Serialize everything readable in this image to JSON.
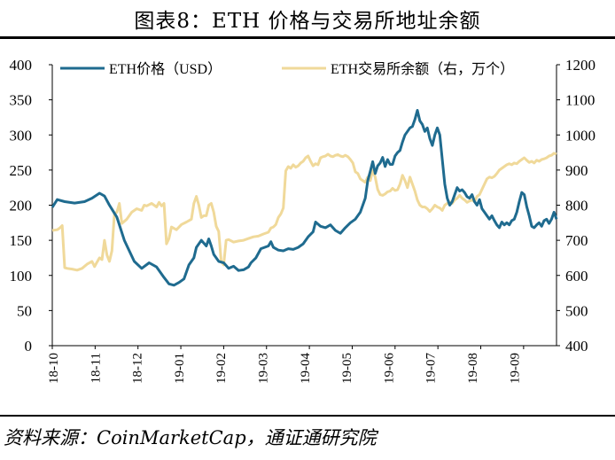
{
  "title": "图表8：ETH 价格与交易所地址余额",
  "source": "资料来源：CoinMarketCap，通证通研究院",
  "chart_data": {
    "type": "line",
    "x_ticks": [
      "18-10",
      "18-11",
      "18-12",
      "19-01",
      "19-02",
      "19-03",
      "19-04",
      "19-05",
      "19-06",
      "19-07",
      "19-08",
      "19-09"
    ],
    "y_left": {
      "lim": [
        0,
        400
      ],
      "ticks": [
        "0",
        "50",
        "100",
        "150",
        "200",
        "250",
        "300",
        "350",
        "400"
      ]
    },
    "y_right": {
      "lim": [
        400,
        1200
      ],
      "ticks": [
        "400",
        "500",
        "600",
        "700",
        "800",
        "900",
        "1000",
        "1100",
        "1200"
      ]
    },
    "legend_position": "top",
    "series": [
      {
        "name": "ETH价格（USD）",
        "axis": "left",
        "color": "#1f6b8f",
        "points": [
          [
            0,
            197
          ],
          [
            2,
            208
          ],
          [
            5,
            205
          ],
          [
            9,
            203
          ],
          [
            13,
            205
          ],
          [
            16,
            210
          ],
          [
            19,
            217
          ],
          [
            21,
            213
          ],
          [
            23,
            200
          ],
          [
            26,
            183
          ],
          [
            29,
            150
          ],
          [
            31,
            135
          ],
          [
            33,
            120
          ],
          [
            36,
            110
          ],
          [
            39,
            118
          ],
          [
            42,
            112
          ],
          [
            45,
            97
          ],
          [
            47,
            88
          ],
          [
            49,
            86
          ],
          [
            51,
            90
          ],
          [
            53,
            95
          ],
          [
            55,
            115
          ],
          [
            57,
            125
          ],
          [
            58,
            140
          ],
          [
            60,
            150
          ],
          [
            62,
            142
          ],
          [
            63,
            152
          ],
          [
            64,
            142
          ],
          [
            65,
            130
          ],
          [
            67,
            120
          ],
          [
            69,
            118
          ],
          [
            71,
            110
          ],
          [
            73,
            113
          ],
          [
            75,
            107
          ],
          [
            77,
            108
          ],
          [
            79,
            112
          ],
          [
            80,
            118
          ],
          [
            82,
            125
          ],
          [
            84,
            138
          ],
          [
            87,
            142
          ],
          [
            88,
            148
          ],
          [
            89,
            140
          ],
          [
            91,
            136
          ],
          [
            93,
            135
          ],
          [
            95,
            138
          ],
          [
            97,
            137
          ],
          [
            99,
            140
          ],
          [
            101,
            145
          ],
          [
            103,
            155
          ],
          [
            105,
            162
          ],
          [
            106,
            176
          ],
          [
            108,
            170
          ],
          [
            110,
            168
          ],
          [
            112,
            172
          ],
          [
            114,
            164
          ],
          [
            116,
            160
          ],
          [
            118,
            168
          ],
          [
            120,
            175
          ],
          [
            122,
            180
          ],
          [
            124,
            190
          ],
          [
            126,
            210
          ],
          [
            127,
            235
          ],
          [
            128,
            248
          ],
          [
            129,
            262
          ],
          [
            130,
            245
          ],
          [
            131,
            256
          ],
          [
            132,
            260
          ],
          [
            133,
            268
          ],
          [
            134,
            255
          ],
          [
            135,
            265
          ],
          [
            136,
            258
          ],
          [
            137,
            258
          ],
          [
            138,
            270
          ],
          [
            139,
            275
          ],
          [
            140,
            278
          ],
          [
            141,
            290
          ],
          [
            142,
            300
          ],
          [
            143,
            305
          ],
          [
            144,
            310
          ],
          [
            145,
            312
          ],
          [
            146,
            322
          ],
          [
            147,
            335
          ],
          [
            148,
            320
          ],
          [
            149,
            315
          ],
          [
            150,
            305
          ],
          [
            151,
            310
          ],
          [
            152,
            295
          ],
          [
            153,
            285
          ],
          [
            154,
            300
          ],
          [
            155,
            310
          ],
          [
            156,
            300
          ],
          [
            157,
            265
          ],
          [
            158,
            230
          ],
          [
            159,
            210
          ],
          [
            160,
            200
          ],
          [
            161,
            205
          ],
          [
            162,
            215
          ],
          [
            163,
            225
          ],
          [
            164,
            220
          ],
          [
            165,
            222
          ],
          [
            166,
            218
          ],
          [
            167,
            212
          ],
          [
            168,
            210
          ],
          [
            169,
            215
          ],
          [
            170,
            205
          ],
          [
            171,
            200
          ],
          [
            172,
            208
          ],
          [
            173,
            195
          ],
          [
            174,
            190
          ],
          [
            175,
            185
          ],
          [
            176,
            180
          ],
          [
            177,
            185
          ],
          [
            178,
            178
          ],
          [
            179,
            172
          ],
          [
            180,
            168
          ],
          [
            181,
            176
          ],
          [
            182,
            172
          ],
          [
            183,
            175
          ],
          [
            184,
            172
          ],
          [
            185,
            178
          ],
          [
            186,
            180
          ],
          [
            187,
            190
          ],
          [
            188,
            205
          ],
          [
            189,
            218
          ],
          [
            190,
            215
          ],
          [
            191,
            198
          ],
          [
            192,
            185
          ],
          [
            193,
            170
          ],
          [
            194,
            168
          ],
          [
            195,
            172
          ],
          [
            196,
            175
          ],
          [
            197,
            170
          ],
          [
            198,
            178
          ],
          [
            199,
            180
          ],
          [
            200,
            174
          ],
          [
            201,
            180
          ],
          [
            202,
            190
          ],
          [
            203,
            180
          ]
        ]
      },
      {
        "name": "ETH交易所余额（右，万个）",
        "axis": "right",
        "color": "#f0d99a",
        "points": [
          [
            0,
            728
          ],
          [
            2,
            730
          ],
          [
            3,
            735
          ],
          [
            4,
            742
          ],
          [
            5,
            622
          ],
          [
            6,
            620
          ],
          [
            8,
            618
          ],
          [
            10,
            615
          ],
          [
            12,
            620
          ],
          [
            14,
            632
          ],
          [
            16,
            640
          ],
          [
            17,
            625
          ],
          [
            18,
            638
          ],
          [
            19,
            650
          ],
          [
            20,
            645
          ],
          [
            21,
            700
          ],
          [
            22,
            658
          ],
          [
            23,
            640
          ],
          [
            24,
            670
          ],
          [
            25,
            775
          ],
          [
            26,
            780
          ],
          [
            27,
            805
          ],
          [
            28,
            748
          ],
          [
            30,
            760
          ],
          [
            32,
            780
          ],
          [
            34,
            790
          ],
          [
            36,
            785
          ],
          [
            37,
            800
          ],
          [
            38,
            798
          ],
          [
            40,
            805
          ],
          [
            42,
            795
          ],
          [
            43,
            808
          ],
          [
            44,
            798
          ],
          [
            45,
            805
          ],
          [
            46,
            690
          ],
          [
            47,
            705
          ],
          [
            48,
            738
          ],
          [
            50,
            730
          ],
          [
            52,
            745
          ],
          [
            54,
            752
          ],
          [
            56,
            760
          ],
          [
            57,
            805
          ],
          [
            58,
            825
          ],
          [
            59,
            800
          ],
          [
            60,
            765
          ],
          [
            61,
            770
          ],
          [
            62,
            770
          ],
          [
            63,
            800
          ],
          [
            64,
            805
          ],
          [
            65,
            780
          ],
          [
            66,
            740
          ],
          [
            67,
            725
          ],
          [
            68,
            640
          ],
          [
            69,
            630
          ],
          [
            70,
            700
          ],
          [
            71,
            702
          ],
          [
            73,
            695
          ],
          [
            75,
            698
          ],
          [
            77,
            700
          ],
          [
            79,
            705
          ],
          [
            81,
            710
          ],
          [
            83,
            712
          ],
          [
            85,
            718
          ],
          [
            87,
            723
          ],
          [
            88,
            735
          ],
          [
            89,
            738
          ],
          [
            90,
            745
          ],
          [
            91,
            765
          ],
          [
            92,
            775
          ],
          [
            93,
            792
          ],
          [
            94,
            898
          ],
          [
            95,
            910
          ],
          [
            96,
            905
          ],
          [
            97,
            915
          ],
          [
            98,
            908
          ],
          [
            99,
            912
          ],
          [
            100,
            920
          ],
          [
            101,
            925
          ],
          [
            102,
            935
          ],
          [
            103,
            940
          ],
          [
            104,
            925
          ],
          [
            105,
            912
          ],
          [
            106,
            918
          ],
          [
            107,
            915
          ],
          [
            108,
            935
          ],
          [
            109,
            938
          ],
          [
            110,
            940
          ],
          [
            111,
            945
          ],
          [
            112,
            940
          ],
          [
            113,
            938
          ],
          [
            114,
            942
          ],
          [
            115,
            944
          ],
          [
            116,
            940
          ],
          [
            117,
            938
          ],
          [
            118,
            942
          ],
          [
            119,
            938
          ],
          [
            120,
            930
          ],
          [
            121,
            920
          ],
          [
            122,
            895
          ],
          [
            123,
            890
          ],
          [
            124,
            875
          ],
          [
            125,
            870
          ],
          [
            126,
            865
          ],
          [
            127,
            880
          ],
          [
            128,
            870
          ],
          [
            129,
            900
          ],
          [
            130,
            880
          ],
          [
            131,
            845
          ],
          [
            132,
            830
          ],
          [
            133,
            828
          ],
          [
            134,
            832
          ],
          [
            135,
            838
          ],
          [
            136,
            840
          ],
          [
            137,
            848
          ],
          [
            138,
            842
          ],
          [
            139,
            844
          ],
          [
            140,
            860
          ],
          [
            141,
            885
          ],
          [
            142,
            870
          ],
          [
            143,
            850
          ],
          [
            144,
            880
          ],
          [
            145,
            860
          ],
          [
            146,
            840
          ],
          [
            147,
            815
          ],
          [
            148,
            800
          ],
          [
            149,
            795
          ],
          [
            150,
            795
          ],
          [
            151,
            790
          ],
          [
            152,
            782
          ],
          [
            153,
            790
          ],
          [
            154,
            800
          ],
          [
            155,
            795
          ],
          [
            156,
            792
          ],
          [
            157,
            785
          ],
          [
            158,
            800
          ],
          [
            159,
            805
          ],
          [
            160,
            810
          ],
          [
            161,
            805
          ],
          [
            162,
            815
          ],
          [
            163,
            820
          ],
          [
            164,
            828
          ],
          [
            165,
            820
          ],
          [
            166,
            815
          ],
          [
            167,
            808
          ],
          [
            168,
            812
          ],
          [
            169,
            815
          ],
          [
            170,
            810
          ],
          [
            171,
            825
          ],
          [
            172,
            830
          ],
          [
            173,
            845
          ],
          [
            174,
            860
          ],
          [
            175,
            875
          ],
          [
            176,
            880
          ],
          [
            177,
            878
          ],
          [
            178,
            882
          ],
          [
            179,
            890
          ],
          [
            180,
            900
          ],
          [
            181,
            905
          ],
          [
            182,
            910
          ],
          [
            183,
            915
          ],
          [
            184,
            918
          ],
          [
            185,
            915
          ],
          [
            186,
            920
          ],
          [
            187,
            918
          ],
          [
            188,
            925
          ],
          [
            189,
            930
          ],
          [
            190,
            935
          ],
          [
            191,
            928
          ],
          [
            192,
            922
          ],
          [
            193,
            925
          ],
          [
            194,
            920
          ],
          [
            195,
            928
          ],
          [
            196,
            925
          ],
          [
            197,
            930
          ],
          [
            198,
            932
          ],
          [
            199,
            935
          ],
          [
            200,
            940
          ],
          [
            201,
            942
          ],
          [
            202,
            948
          ],
          [
            203,
            945
          ]
        ]
      }
    ]
  }
}
